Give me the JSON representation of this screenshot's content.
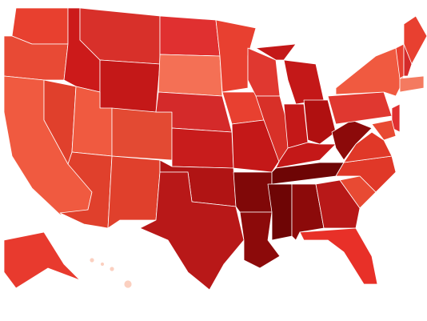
{
  "map": {
    "regions": [
      {
        "color": "#e8402f"
      },
      {
        "color": "#e84a35"
      },
      {
        "color": "#f05a40"
      },
      {
        "color": "#cc1a1a"
      },
      {
        "color": "#e0402c"
      },
      {
        "color": "#d8302a"
      },
      {
        "color": "#c41818"
      },
      {
        "color": "#f05a40"
      },
      {
        "color": "#e0402c"
      },
      {
        "color": "#e34a33"
      },
      {
        "color": "#e0402c"
      },
      {
        "color": "#e03030"
      },
      {
        "color": "#f47055"
      },
      {
        "color": "#d42a2a"
      },
      {
        "color": "#c81c1c"
      },
      {
        "color": "#b01414"
      },
      {
        "color": "#b81818"
      },
      {
        "color": "#e84030"
      },
      {
        "color": "#e84030"
      },
      {
        "color": "#c41818"
      },
      {
        "color": "#800808"
      },
      {
        "color": "#8c0a0a"
      },
      {
        "color": "#e03830"
      },
      {
        "color": "#d83028"
      },
      {
        "color": "#c41818"
      },
      {
        "color": "#c41818"
      },
      {
        "color": "#c41818"
      },
      {
        "color": "#b01010"
      },
      {
        "color": "#c41818"
      },
      {
        "color": "#6e0505"
      },
      {
        "color": "#6e0505"
      },
      {
        "color": "#8c0a0a"
      },
      {
        "color": "#b81818"
      },
      {
        "color": "#e83028"
      },
      {
        "color": "#e84a33"
      },
      {
        "color": "#e03828"
      },
      {
        "color": "#e03828"
      },
      {
        "color": "#8c0a0a"
      },
      {
        "color": "#e03830"
      },
      {
        "color": "#f05a40"
      },
      {
        "color": "#e84030"
      },
      {
        "color": "#e84030"
      },
      {
        "color": "#d42a2a"
      },
      {
        "color": "#f47a60"
      },
      {
        "color": "#e03030"
      },
      {
        "color": "#e84a33"
      },
      {
        "color": "#e83a2e"
      },
      {
        "color": "#fbd0c0"
      }
    ]
  }
}
